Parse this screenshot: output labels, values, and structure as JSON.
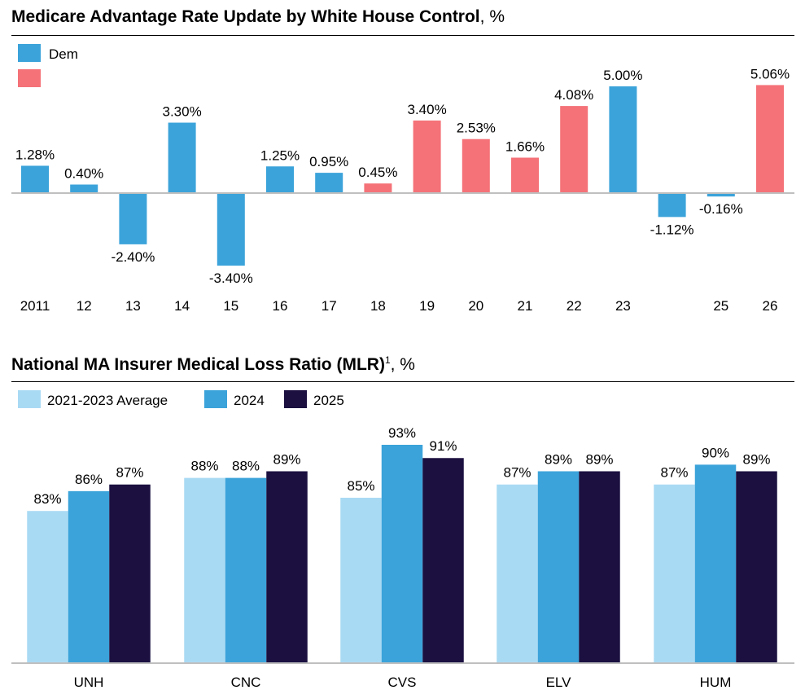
{
  "colors": {
    "dem": "#3ba3da",
    "rep": "#f47278",
    "avg": "#a9daf4",
    "y2024": "#3ba3da",
    "y2025": "#1b1040",
    "axis": "#bfbfbf"
  },
  "chart1": {
    "title_bold": "Medicare Advantage Rate Update by White House Control",
    "title_suffix": ", %",
    "legend": {
      "dem": "Dem",
      "rep": ""
    }
  },
  "chart2": {
    "title_bold": "National MA Insurer Medical Loss Ratio (MLR)",
    "title_sup": "1",
    "title_suffix": ", %",
    "legend": {
      "avg": "2021-2023 Average",
      "y2024": "2024",
      "y2025": "2025"
    }
  },
  "chart_data": [
    {
      "type": "bar",
      "title": "Medicare Advantage Rate Update by White House Control, %",
      "categories": [
        "2011",
        "12",
        "13",
        "14",
        "15",
        "16",
        "17",
        "18",
        "19",
        "20",
        "21",
        "22",
        "23",
        "",
        "25",
        "26"
      ],
      "values": [
        1.28,
        0.4,
        -2.4,
        3.3,
        -3.4,
        1.25,
        0.95,
        0.45,
        3.4,
        2.53,
        1.66,
        4.08,
        5.0,
        -1.12,
        -0.16,
        5.06
      ],
      "labels": [
        "1.28%",
        "0.40%",
        "-2.40%",
        "3.30%",
        "-3.40%",
        "1.25%",
        "0.95%",
        "0.45%",
        "3.40%",
        "2.53%",
        "1.66%",
        "4.08%",
        "5.00%",
        "-1.12%",
        "-0.16%",
        "5.06%"
      ],
      "party": [
        "dem",
        "dem",
        "dem",
        "dem",
        "dem",
        "dem",
        "dem",
        "rep",
        "rep",
        "rep",
        "rep",
        "rep",
        "dem",
        "dem",
        "dem",
        "rep"
      ],
      "legend": [
        "Dem",
        ""
      ],
      "xlabel": "",
      "ylabel": "",
      "ylim": [
        -3.4,
        5.06
      ]
    },
    {
      "type": "bar",
      "title": "National MA Insurer Medical Loss Ratio (MLR)1, %",
      "categories": [
        "UNH",
        "CNC",
        "CVS",
        "ELV",
        "HUM"
      ],
      "series": [
        {
          "name": "2021-2023 Average",
          "values": [
            83,
            88,
            85,
            87,
            87
          ],
          "labels": [
            "83%",
            "88%",
            "85%",
            "87%",
            "87%"
          ]
        },
        {
          "name": "2024",
          "values": [
            86,
            88,
            93,
            89,
            90
          ],
          "labels": [
            "86%",
            "88%",
            "93%",
            "89%",
            "90%"
          ]
        },
        {
          "name": "2025",
          "values": [
            87,
            89,
            91,
            89,
            89
          ],
          "labels": [
            "87%",
            "89%",
            "91%",
            "89%",
            "89%"
          ]
        }
      ],
      "xlabel": "",
      "ylabel": ""
    }
  ]
}
